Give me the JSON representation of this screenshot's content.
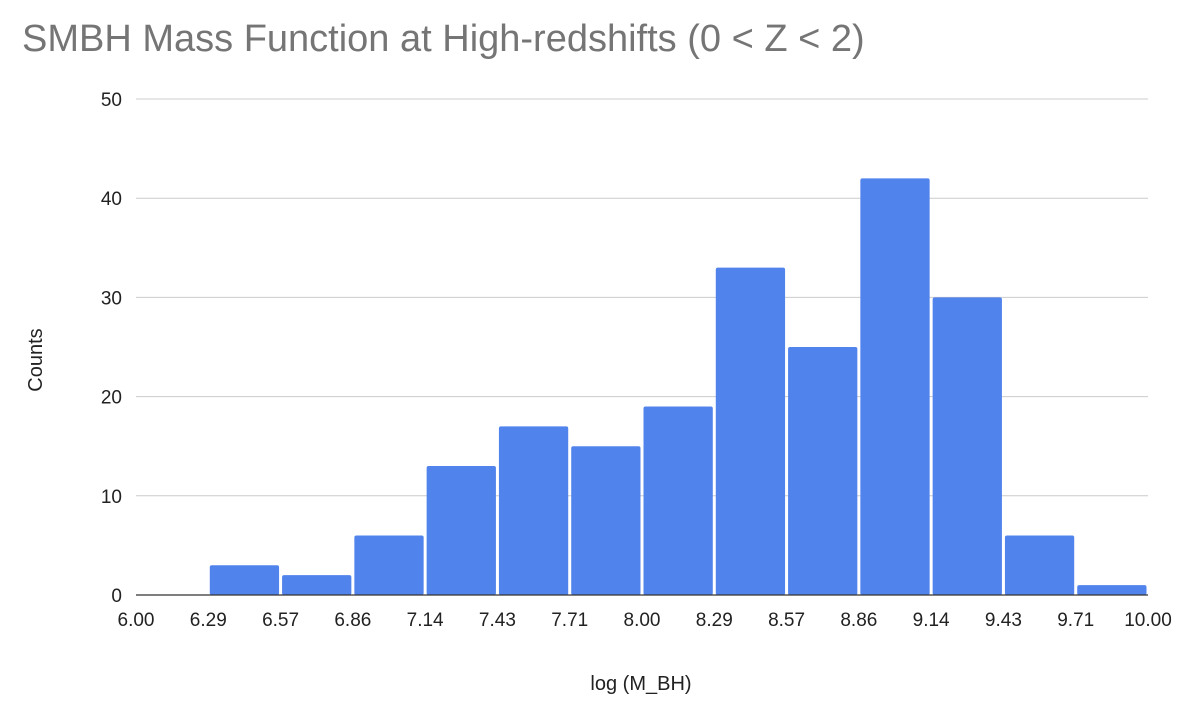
{
  "chart_data": {
    "type": "bar",
    "title": "SMBH Mass Function at High-redshifts (0 < Z < 2)",
    "xlabel": "log (M_BH)",
    "ylabel": "Counts",
    "x_ticks": [
      "6.00",
      "6.29",
      "6.57",
      "6.86",
      "7.14",
      "7.43",
      "7.71",
      "8.00",
      "8.29",
      "8.57",
      "8.86",
      "9.14",
      "9.43",
      "9.71",
      "10.00"
    ],
    "y_ticks": [
      "0",
      "10",
      "20",
      "30",
      "40",
      "50"
    ],
    "xlim": [
      6.0,
      10.0
    ],
    "ylim": [
      0,
      50
    ],
    "bins": [
      {
        "range": [
          "6.00",
          "6.29"
        ],
        "value": 0
      },
      {
        "range": [
          "6.29",
          "6.57"
        ],
        "value": 3
      },
      {
        "range": [
          "6.57",
          "6.86"
        ],
        "value": 2
      },
      {
        "range": [
          "6.86",
          "7.14"
        ],
        "value": 6
      },
      {
        "range": [
          "7.14",
          "7.43"
        ],
        "value": 13
      },
      {
        "range": [
          "7.43",
          "7.71"
        ],
        "value": 17
      },
      {
        "range": [
          "7.71",
          "8.00"
        ],
        "value": 15
      },
      {
        "range": [
          "8.00",
          "8.29"
        ],
        "value": 19
      },
      {
        "range": [
          "8.29",
          "8.57"
        ],
        "value": 33
      },
      {
        "range": [
          "8.57",
          "8.86"
        ],
        "value": 25
      },
      {
        "range": [
          "8.86",
          "9.14"
        ],
        "value": 42
      },
      {
        "range": [
          "9.14",
          "9.43"
        ],
        "value": 30
      },
      {
        "range": [
          "9.43",
          "9.71"
        ],
        "value": 6
      },
      {
        "range": [
          "9.71",
          "10.00"
        ],
        "value": 1
      }
    ],
    "bar_color": "#5183EC",
    "gridlines": true,
    "legend": "none"
  }
}
